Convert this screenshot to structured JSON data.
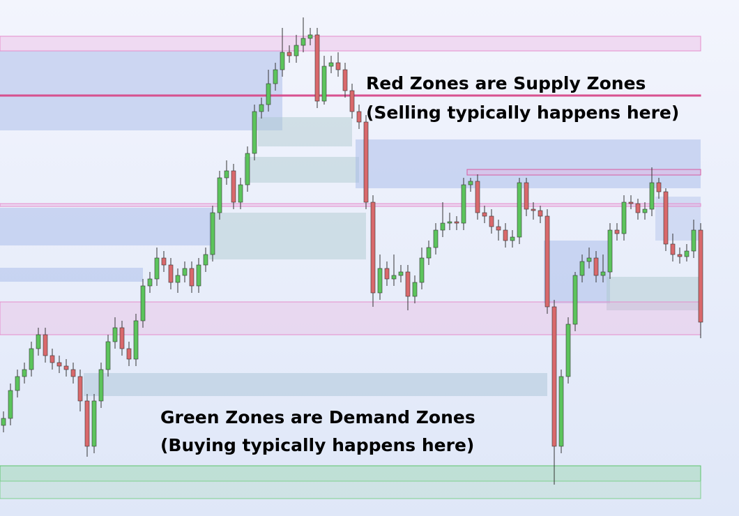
{
  "chart_data": {
    "type": "candlestick",
    "annotations": [
      "Red Zones are Supply Zones",
      "(Selling typically happens here)",
      "Green Zones are Demand Zones",
      "(Buying typically happens here)"
    ],
    "ylim": [
      0,
      740
    ],
    "up_color": "#5cc45c",
    "down_color": "#d9686b",
    "open": [
      130,
      140,
      180,
      200,
      210,
      240,
      260,
      230,
      220,
      215,
      210,
      200,
      165,
      100,
      165,
      210,
      250,
      270,
      240,
      225,
      280,
      330,
      340,
      370,
      360,
      335,
      345,
      355,
      330,
      360,
      375,
      435,
      485,
      495,
      450,
      475,
      520,
      580,
      590,
      620,
      640,
      665,
      660,
      675,
      685,
      690,
      595,
      645,
      650,
      640,
      610,
      580,
      565,
      450,
      320,
      355,
      340,
      345,
      350,
      315,
      335,
      370,
      385,
      410,
      420,
      422,
      420,
      475,
      480,
      435,
      430,
      415,
      410,
      395,
      400,
      478,
      440,
      438,
      430,
      300,
      100,
      200,
      275,
      345,
      365,
      370,
      345,
      350,
      410,
      405,
      450,
      448,
      435,
      440,
      478,
      465,
      390,
      375,
      372,
      380,
      410
    ],
    "high": [
      150,
      190,
      210,
      220,
      250,
      270,
      270,
      240,
      230,
      225,
      220,
      210,
      175,
      175,
      220,
      260,
      285,
      280,
      250,
      290,
      340,
      350,
      385,
      380,
      370,
      355,
      365,
      365,
      370,
      385,
      445,
      495,
      510,
      505,
      485,
      530,
      590,
      600,
      640,
      650,
      700,
      675,
      690,
      715,
      700,
      700,
      660,
      660,
      665,
      650,
      620,
      590,
      575,
      460,
      375,
      365,
      375,
      360,
      360,
      345,
      385,
      395,
      420,
      450,
      435,
      430,
      485,
      485,
      490,
      445,
      440,
      425,
      420,
      410,
      485,
      485,
      450,
      445,
      440,
      310,
      210,
      285,
      350,
      375,
      385,
      380,
      375,
      420,
      420,
      460,
      460,
      455,
      450,
      500,
      485,
      470,
      405,
      385,
      390,
      425,
      420
    ],
    "low": [
      120,
      130,
      170,
      190,
      200,
      230,
      220,
      210,
      205,
      200,
      190,
      150,
      85,
      90,
      155,
      200,
      240,
      230,
      215,
      215,
      270,
      320,
      330,
      350,
      325,
      320,
      335,
      320,
      320,
      350,
      365,
      425,
      475,
      440,
      440,
      465,
      510,
      570,
      580,
      610,
      630,
      650,
      650,
      665,
      675,
      585,
      590,
      635,
      630,
      600,
      570,
      555,
      440,
      300,
      310,
      330,
      330,
      335,
      295,
      305,
      325,
      360,
      375,
      400,
      410,
      410,
      410,
      465,
      425,
      420,
      405,
      395,
      385,
      385,
      390,
      430,
      425,
      420,
      290,
      45,
      90,
      190,
      265,
      335,
      355,
      335,
      335,
      340,
      395,
      395,
      440,
      425,
      425,
      430,
      455,
      380,
      365,
      362,
      365,
      370,
      255
    ],
    "close": [
      140,
      180,
      200,
      210,
      240,
      260,
      230,
      220,
      215,
      210,
      200,
      165,
      100,
      165,
      210,
      250,
      270,
      240,
      225,
      280,
      330,
      340,
      370,
      360,
      335,
      345,
      355,
      330,
      360,
      375,
      435,
      485,
      495,
      450,
      475,
      520,
      580,
      590,
      620,
      640,
      665,
      660,
      675,
      685,
      690,
      595,
      645,
      650,
      640,
      610,
      580,
      565,
      450,
      320,
      355,
      340,
      345,
      350,
      315,
      335,
      370,
      385,
      410,
      420,
      422,
      420,
      475,
      480,
      435,
      430,
      415,
      410,
      395,
      400,
      478,
      440,
      438,
      430,
      300,
      100,
      200,
      275,
      345,
      365,
      370,
      345,
      350,
      410,
      405,
      450,
      448,
      435,
      440,
      478,
      465,
      390,
      375,
      372,
      380,
      410,
      278
    ],
    "zones": [
      {
        "top": 667,
        "bottom": 553,
        "start": 0,
        "end": 40,
        "color": "rgba(160,180,230,0.45)",
        "border": "none"
      },
      {
        "top": 572,
        "bottom": 530,
        "start": 37,
        "end": 50,
        "color": "rgba(170,200,205,0.45)",
        "border": "none"
      },
      {
        "top": 515,
        "bottom": 478,
        "start": 35,
        "end": 51,
        "color": "rgba(170,200,205,0.45)",
        "border": "none"
      },
      {
        "top": 540,
        "bottom": 470,
        "start": 51,
        "end": 100,
        "color": "rgba(160,180,230,0.45)",
        "border": "none"
      },
      {
        "top": 435,
        "bottom": 368,
        "start": 30,
        "end": 52,
        "color": "rgba(170,200,205,0.45)",
        "border": "none"
      },
      {
        "top": 442,
        "bottom": 388,
        "start": 0,
        "end": 30,
        "color": "rgba(160,180,230,0.45)",
        "border": "none"
      },
      {
        "top": 356,
        "bottom": 336,
        "start": 0,
        "end": 20,
        "color": "rgba(160,180,230,0.45)",
        "border": "none"
      },
      {
        "top": 205,
        "bottom": 172,
        "start": 12,
        "end": 78,
        "color": "rgba(170,195,215,0.5)",
        "border": "none"
      },
      {
        "top": 395,
        "bottom": 305,
        "start": 78,
        "end": 87,
        "color": "rgba(160,180,230,0.45)",
        "border": "none"
      },
      {
        "top": 343,
        "bottom": 295,
        "start": 87,
        "end": 100,
        "color": "rgba(170,200,205,0.45)",
        "border": "none"
      },
      {
        "top": 458,
        "bottom": 395,
        "start": 94,
        "end": 100,
        "color": "rgba(160,180,230,0.35)",
        "border": "none"
      },
      {
        "top": 688,
        "bottom": 667,
        "start": 0,
        "end": 100,
        "color": "rgba(235,170,220,0.35)",
        "border": "#e58ccb"
      },
      {
        "top": 604,
        "bottom": 602,
        "start": 0,
        "end": 100,
        "color": "rgba(214,74,138,0.9)",
        "border": "#d64a8a"
      },
      {
        "top": 448,
        "bottom": 444,
        "start": 0,
        "end": 100,
        "color": "rgba(235,170,220,0.35)",
        "border": "#e58ccb"
      },
      {
        "top": 497,
        "bottom": 489,
        "start": 67,
        "end": 100,
        "color": "rgba(235,170,220,0.35)",
        "border": "#d65aa0"
      },
      {
        "top": 307,
        "bottom": 260,
        "start": 0,
        "end": 100,
        "color": "rgba(235,170,220,0.3)",
        "border": "#e58ccb"
      },
      {
        "top": 72,
        "bottom": 50,
        "start": 0,
        "end": 100,
        "color": "rgba(130,210,150,0.35)",
        "border": "#5cc46c"
      },
      {
        "top": 50,
        "bottom": 25,
        "start": 0,
        "end": 100,
        "color": "rgba(170,215,185,0.3)",
        "border": "#7fd08f"
      }
    ]
  }
}
